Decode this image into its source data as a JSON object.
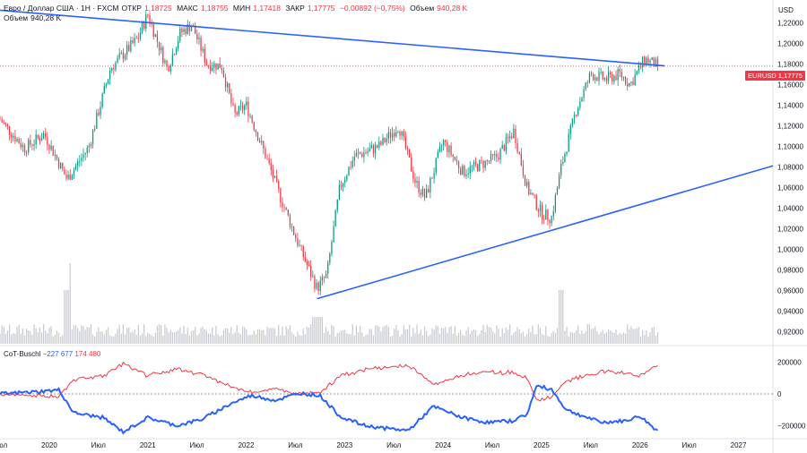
{
  "header": {
    "symbol": "Евро / Доллар США · 1Н · FXCM",
    "open_label": "ОТКР",
    "open": "1,18725",
    "high_label": "МАКС",
    "high": "1,18755",
    "low_label": "МИН",
    "low": "1,17418",
    "close_label": "ЗАКР",
    "close": "1,17775",
    "change": "−0,00892 (−0,75%)",
    "volume_inline_label": "Объем",
    "volume_inline": "940,28 K",
    "volume_label": "Объем",
    "volume_value": "940,28 K"
  },
  "currency": "USD",
  "price_badge": {
    "symbol": "EURUSD",
    "price": "1,17775"
  },
  "cot_indicator": {
    "name": "CoT-Buschl",
    "value1": "−227 677",
    "value2": "174 480"
  },
  "colors": {
    "up": "#089981",
    "down": "#f23645",
    "trendline": "#2962ff",
    "cot_blue": "#2962ff",
    "cot_red": "#f23645",
    "volume": "#c9cbd1"
  },
  "chart_data": [
    {
      "type": "candlestick",
      "title": "Евро / Доллар США · 1Н · FXCM",
      "x_axis": {
        "labels": [
          "Июл",
          "2020",
          "Июл",
          "2021",
          "Июл",
          "2022",
          "Июл",
          "2023",
          "Июл",
          "2024",
          "Июл",
          "2025",
          "Июл",
          "2026",
          "Июл",
          "2027"
        ],
        "label_dates": [
          2019.5,
          2020.0,
          2020.5,
          2021.0,
          2021.5,
          2022.0,
          2022.5,
          2023.0,
          2023.5,
          2024.0,
          2024.5,
          2025.0,
          2025.5,
          2026.0,
          2026.5,
          2027.0
        ],
        "range": [
          2019.5,
          2027.35
        ]
      },
      "y_axis": {
        "ticks": [
          "1,22000",
          "1,20000",
          "1,18000",
          "1,16000",
          "1,14000",
          "1,12000",
          "1,10000",
          "1,08000",
          "1,06000",
          "1,04000",
          "1,02000",
          "1,00000",
          "0,98000",
          "0,96000",
          "0,94000",
          "0,92000"
        ],
        "range": [
          0.91,
          1.235
        ]
      },
      "price_path": [
        [
          2019.5,
          1.126
        ],
        [
          2019.75,
          1.098
        ],
        [
          2019.95,
          1.112
        ],
        [
          2020.18,
          1.068
        ],
        [
          2020.4,
          1.099
        ],
        [
          2020.62,
          1.175
        ],
        [
          2020.9,
          1.205
        ],
        [
          2021.0,
          1.228
        ],
        [
          2021.2,
          1.175
        ],
        [
          2021.33,
          1.21
        ],
        [
          2021.45,
          1.218
        ],
        [
          2021.6,
          1.18
        ],
        [
          2021.75,
          1.178
        ],
        [
          2021.88,
          1.13
        ],
        [
          2022.0,
          1.14
        ],
        [
          2022.2,
          1.09
        ],
        [
          2022.35,
          1.05
        ],
        [
          2022.55,
          1.0
        ],
        [
          2022.72,
          0.962
        ],
        [
          2022.82,
          0.975
        ],
        [
          2022.95,
          1.06
        ],
        [
          2023.1,
          1.09
        ],
        [
          2023.35,
          1.1
        ],
        [
          2023.55,
          1.12
        ],
        [
          2023.72,
          1.065
        ],
        [
          2023.82,
          1.05
        ],
        [
          2024.0,
          1.105
        ],
        [
          2024.2,
          1.075
        ],
        [
          2024.45,
          1.085
        ],
        [
          2024.55,
          1.09
        ],
        [
          2024.72,
          1.115
        ],
        [
          2024.85,
          1.06
        ],
        [
          2025.0,
          1.035
        ],
        [
          2025.1,
          1.03
        ],
        [
          2025.2,
          1.08
        ],
        [
          2025.35,
          1.135
        ],
        [
          2025.5,
          1.17
        ],
        [
          2025.65,
          1.165
        ],
        [
          2025.8,
          1.17
        ],
        [
          2025.9,
          1.16
        ],
        [
          2026.05,
          1.185
        ],
        [
          2026.18,
          1.178
        ]
      ],
      "last_price": 1.17775,
      "trendlines": [
        {
          "from": [
            2019.5,
            1.232
          ],
          "to": [
            2026.25,
            1.178
          ]
        },
        {
          "from": [
            2022.72,
            0.952
          ],
          "to": [
            2027.35,
            1.081
          ]
        }
      ],
      "series": [
        {
          "name": "Объем",
          "type": "bar",
          "note": "weekly volume histogram, spikes near 2020.2 and 2025.2"
        },
        {
          "name": "CoT-Buschl",
          "type": "line",
          "values_last": [
            -227677,
            174480
          ],
          "ticks": [
            "200000",
            "0",
            "−200000"
          ],
          "ylim": [
            -260000,
            260000
          ]
        }
      ]
    }
  ]
}
